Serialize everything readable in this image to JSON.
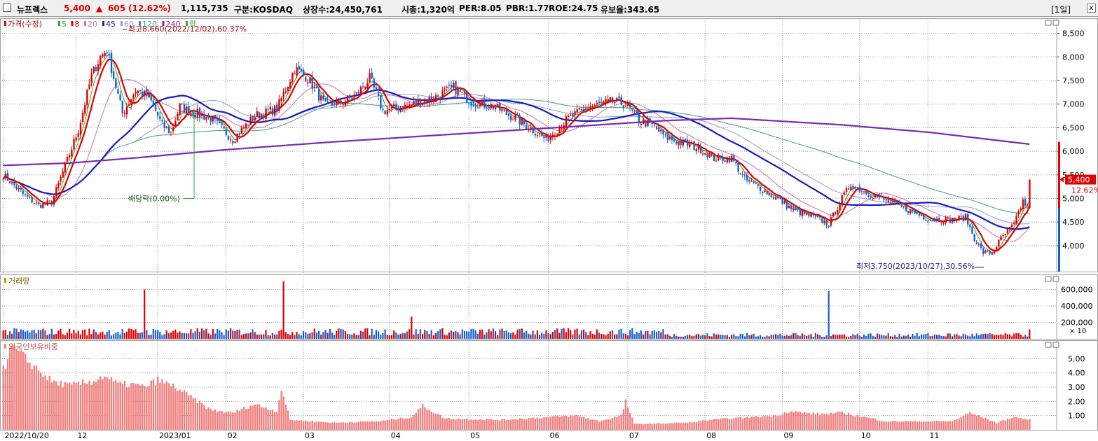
{
  "header": {
    "stock_name": "뉴프렉스",
    "price": "5,400",
    "arrow": "▲",
    "change": "605",
    "change_pct": "(12.62%)",
    "volume": "1,115,735",
    "market": "구분:KOSDAQ",
    "shares": "상장수:24,450,761",
    "mcap": "시총:1,320억",
    "per": "PER:8.05",
    "pbr": "PBR:1.77",
    "roe": "ROE:24.75",
    "reserve": "유보율:343.65",
    "period": "[1일]",
    "close_icon": "x"
  },
  "colors": {
    "up": "#e00000",
    "down": "#1560d0",
    "ma5": "#2aa82a",
    "ma8": "#e00000",
    "ma20": "#d070a0",
    "ma45": "#1a1ac0",
    "ma60": "#88a0d0",
    "ma120": "#40a080",
    "ma240": "#7a28b8",
    "foreign": "#f08080"
  },
  "chart_data": [
    {
      "type": "candlestick",
      "legend": [
        {
          "label": "가격(수정)",
          "color": "#e00000"
        },
        {
          "label": "5",
          "color": "#2aa82a"
        },
        {
          "label": "8",
          "color": "#e00000"
        },
        {
          "label": "20",
          "color": "#d070a0"
        },
        {
          "label": "45",
          "color": "#1a1ac0"
        },
        {
          "label": "60",
          "color": "#88a0d0"
        },
        {
          "label": "120",
          "color": "#40a080"
        },
        {
          "label": "240",
          "color": "#7a28b8"
        },
        {
          "label": "락",
          "color": "#2aa82a"
        }
      ],
      "yticks": [
        4000,
        4500,
        5000,
        5500,
        6000,
        6500,
        7000,
        7500,
        8000,
        8500
      ],
      "ytick_labels": [
        "4,000",
        "4,500",
        "5,000",
        "5,500",
        "6,000",
        "6,500",
        "7,000",
        "7,500",
        "8,000",
        "8,500"
      ],
      "ylim": [
        3450,
        8820
      ],
      "high_annotation": "최고8,660(2022/12/02),60.37%",
      "low_annotation": "최저3,750(2023/10/27),30.56%",
      "dividend_annotation": "배당락(0.00%)",
      "last_price_label": "5,400",
      "last_pct_label": "12.62%",
      "ohlc_keypoints": [
        [
          0,
          5500
        ],
        [
          10,
          5050
        ],
        [
          16,
          4850
        ],
        [
          22,
          4920
        ],
        [
          34,
          6450
        ],
        [
          40,
          7600
        ],
        [
          44,
          8000
        ],
        [
          47,
          8150
        ],
        [
          54,
          6800
        ],
        [
          60,
          7300
        ],
        [
          66,
          7150
        ],
        [
          72,
          6550
        ],
        [
          76,
          6400
        ],
        [
          80,
          6950
        ],
        [
          84,
          6850
        ],
        [
          94,
          6700
        ],
        [
          104,
          6250
        ],
        [
          114,
          6750
        ],
        [
          124,
          6900
        ],
        [
          132,
          7750
        ],
        [
          138,
          7550
        ],
        [
          146,
          6950
        ],
        [
          154,
          7050
        ],
        [
          160,
          7200
        ],
        [
          166,
          7550
        ],
        [
          172,
          6850
        ],
        [
          182,
          6950
        ],
        [
          196,
          7150
        ],
        [
          204,
          7350
        ],
        [
          212,
          7050
        ],
        [
          222,
          6950
        ],
        [
          232,
          6700
        ],
        [
          240,
          6450
        ],
        [
          246,
          6250
        ],
        [
          256,
          6700
        ],
        [
          266,
          6950
        ],
        [
          276,
          7050
        ],
        [
          282,
          7000
        ],
        [
          288,
          6650
        ],
        [
          294,
          6550
        ],
        [
          300,
          6300
        ],
        [
          306,
          6200
        ],
        [
          316,
          6050
        ],
        [
          322,
          5850
        ],
        [
          330,
          5850
        ],
        [
          336,
          5400
        ],
        [
          342,
          5250
        ],
        [
          352,
          4950
        ],
        [
          358,
          4750
        ],
        [
          364,
          4650
        ],
        [
          370,
          4550
        ],
        [
          374,
          4450
        ],
        [
          380,
          5000
        ],
        [
          384,
          5300
        ],
        [
          390,
          5150
        ],
        [
          400,
          4950
        ],
        [
          410,
          4750
        ],
        [
          420,
          4550
        ],
        [
          430,
          4550
        ],
        [
          436,
          4600
        ],
        [
          440,
          4150
        ],
        [
          444,
          3850
        ],
        [
          448,
          3850
        ],
        [
          452,
          4150
        ],
        [
          458,
          4450
        ],
        [
          462,
          4950
        ],
        [
          464,
          4800
        ],
        [
          465,
          5400
        ]
      ],
      "volume_spikes": [
        [
          64,
          600000
        ],
        [
          127,
          700000
        ],
        [
          155,
          95000
        ],
        [
          185,
          270000
        ],
        [
          374,
          580000
        ],
        [
          465,
          115000
        ]
      ],
      "ma_windows": [
        5,
        8,
        20,
        45,
        60,
        120
      ],
      "ma240_points": [
        [
          0,
          5700
        ],
        [
          30,
          5750
        ],
        [
          60,
          5860
        ],
        [
          100,
          6030
        ],
        [
          150,
          6200
        ],
        [
          200,
          6350
        ],
        [
          250,
          6500
        ],
        [
          300,
          6650
        ],
        [
          330,
          6700
        ],
        [
          380,
          6560
        ],
        [
          420,
          6400
        ],
        [
          465,
          6150
        ]
      ]
    },
    {
      "type": "bar",
      "title": "거래량",
      "yticks": [
        200000,
        400000,
        600000
      ],
      "ytick_labels": [
        "200,000",
        "400,000",
        "600,000"
      ],
      "unit_label": "× 10",
      "ylim": [
        0,
        750000
      ]
    },
    {
      "type": "bar",
      "title": "외국인보유비중",
      "yticks": [
        1,
        2,
        3,
        4,
        5
      ],
      "ytick_labels": [
        "1.00",
        "2.00",
        "3.00",
        "4.00",
        "5.00"
      ],
      "ylim": [
        0,
        6.3
      ],
      "foreign_keypoints": [
        [
          0,
          4.2
        ],
        [
          4,
          5.8
        ],
        [
          10,
          5.0
        ],
        [
          16,
          4.2
        ],
        [
          22,
          3.4
        ],
        [
          30,
          3.1
        ],
        [
          40,
          3.4
        ],
        [
          46,
          3.8
        ],
        [
          52,
          3.2
        ],
        [
          58,
          3.2
        ],
        [
          64,
          3.0
        ],
        [
          70,
          3.5
        ],
        [
          78,
          3.0
        ],
        [
          84,
          2.4
        ],
        [
          94,
          1.4
        ],
        [
          104,
          1.2
        ],
        [
          114,
          1.8
        ],
        [
          124,
          1.3
        ],
        [
          126,
          2.9
        ],
        [
          130,
          0.7
        ],
        [
          150,
          0.5
        ],
        [
          170,
          0.6
        ],
        [
          185,
          0.9
        ],
        [
          190,
          1.7
        ],
        [
          200,
          0.8
        ],
        [
          225,
          0.7
        ],
        [
          260,
          1.0
        ],
        [
          270,
          0.6
        ],
        [
          280,
          1.0
        ],
        [
          282,
          2.0
        ],
        [
          286,
          0.4
        ],
        [
          310,
          0.5
        ],
        [
          320,
          0.7
        ],
        [
          330,
          0.8
        ],
        [
          350,
          1.0
        ],
        [
          356,
          1.3
        ],
        [
          370,
          1.1
        ],
        [
          380,
          1.2
        ],
        [
          400,
          0.6
        ],
        [
          430,
          0.6
        ],
        [
          438,
          1.2
        ],
        [
          450,
          0.5
        ],
        [
          458,
          0.9
        ],
        [
          465,
          0.7
        ]
      ]
    }
  ],
  "xaxis": {
    "labels": [
      {
        "i": 0,
        "label": "2022/10/20"
      },
      {
        "i": 33,
        "label": "12"
      },
      {
        "i": 70,
        "label": "2023/01"
      },
      {
        "i": 101,
        "label": "02"
      },
      {
        "i": 136,
        "label": "03"
      },
      {
        "i": 175,
        "label": "04"
      },
      {
        "i": 211,
        "label": "05"
      },
      {
        "i": 247,
        "label": "06"
      },
      {
        "i": 283,
        "label": "07"
      },
      {
        "i": 318,
        "label": "08"
      },
      {
        "i": 353,
        "label": "09"
      },
      {
        "i": 388,
        "label": "10"
      },
      {
        "i": 419,
        "label": "11"
      }
    ]
  }
}
